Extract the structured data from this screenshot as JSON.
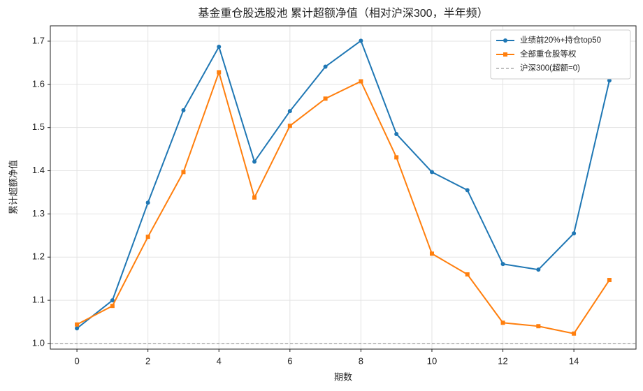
{
  "chart_data": {
    "type": "line",
    "title": "基金重仓股选股池 累计超额净值（相对沪深300，半年频）",
    "x_label": "期数",
    "y_label": "累计超额净值",
    "x": [
      0,
      1,
      2,
      3,
      4,
      5,
      6,
      7,
      8,
      9,
      10,
      11,
      12,
      13,
      14,
      15
    ],
    "series": [
      {
        "name": "业绩前20%+持仓top50",
        "color": "#1f77b4",
        "marker": "circle",
        "values": [
          1.035,
          1.1,
          1.326,
          1.54,
          1.687,
          1.421,
          1.538,
          1.641,
          1.701,
          1.485,
          1.397,
          1.355,
          1.184,
          1.171,
          1.255,
          1.609
        ]
      },
      {
        "name": "全部重仓股等权",
        "color": "#ff7f0e",
        "marker": "square",
        "values": [
          1.044,
          1.087,
          1.247,
          1.397,
          1.628,
          1.338,
          1.504,
          1.567,
          1.607,
          1.431,
          1.208,
          1.16,
          1.048,
          1.04,
          1.023,
          1.147
        ]
      }
    ],
    "reference_lines": [
      {
        "name": "沪深300(超额=0)",
        "value": 1,
        "color": "#808080"
      }
    ],
    "xlim": [
      -0.75,
      15.75
    ],
    "ylim": [
      0.987,
      1.7355
    ],
    "xticks": [
      0,
      2,
      4,
      6,
      8,
      10,
      12,
      14
    ],
    "yticks": [
      {
        "value": 1,
        "label": "1.0"
      },
      1.1,
      1.2,
      1.3,
      1.4,
      1.5,
      1.6,
      1.7
    ],
    "grid": true,
    "legend": "upper right"
  }
}
